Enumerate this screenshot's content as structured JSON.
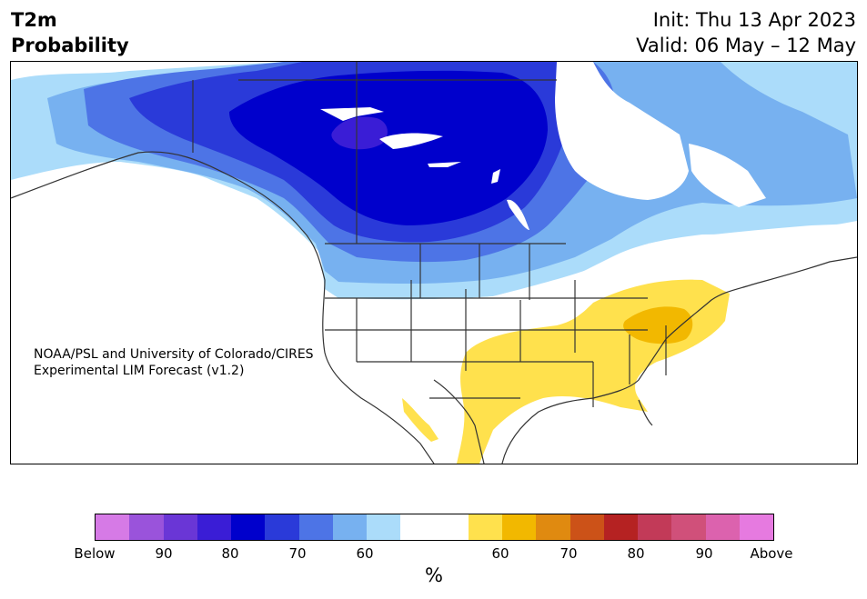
{
  "header": {
    "title_line1": "T2m",
    "title_line2": "Probability",
    "init": "Init: Thu 13 Apr 2023",
    "valid": "Valid: 06 May – 12 May"
  },
  "credit": {
    "line1": "NOAA/PSL and University of Colorado/CIRES",
    "line2": "Experimental LIM Forecast (v1.2)"
  },
  "colorbar": {
    "units": "%",
    "segments": [
      "#d67ae6",
      "#9a53db",
      "#6a36d6",
      "#3a1dd6",
      "#0000cc",
      "#2a3ad9",
      "#4d74e6",
      "#77b1f0",
      "#abdcfa",
      "#ffffff",
      "#ffffff",
      "#ffe14d",
      "#f2b800",
      "#e08a10",
      "#cc5218",
      "#b52222",
      "#c23a58",
      "#d0507a",
      "#dc62ae",
      "#e67ae0"
    ],
    "labels": [
      "Below",
      "90",
      "80",
      "70",
      "60",
      "60",
      "70",
      "80",
      "90",
      "Above"
    ]
  },
  "map": {
    "colors": {
      "blue_90": "#3a1dd6",
      "blue_80": "#0000cc",
      "blue_70": "#2a3ad9",
      "blue_65": "#4d74e6",
      "blue_60": "#77b1f0",
      "blue_55": "#abdcfa",
      "yellow_55": "#ffe14d",
      "yellow_60": "#f2b800",
      "land_line": "#333333"
    }
  }
}
